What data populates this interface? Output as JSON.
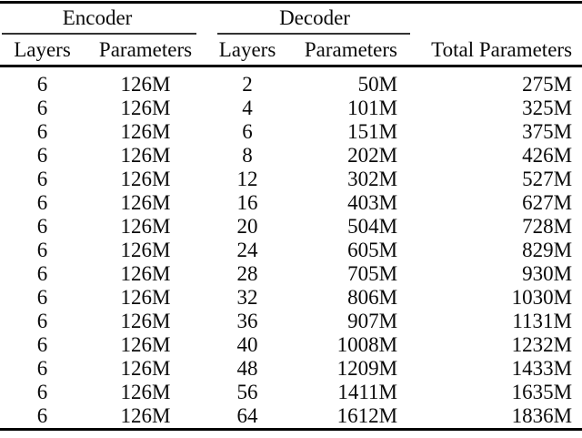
{
  "table": {
    "groups": {
      "encoder_label": "Encoder",
      "decoder_label": "Decoder"
    },
    "columns": [
      "Layers",
      "Parameters",
      "Layers",
      "Parameters",
      "Total Parameters"
    ],
    "rows": [
      [
        "6",
        "126M",
        "2",
        "50M",
        "275M"
      ],
      [
        "6",
        "126M",
        "4",
        "101M",
        "325M"
      ],
      [
        "6",
        "126M",
        "6",
        "151M",
        "375M"
      ],
      [
        "6",
        "126M",
        "8",
        "202M",
        "426M"
      ],
      [
        "6",
        "126M",
        "12",
        "302M",
        "527M"
      ],
      [
        "6",
        "126M",
        "16",
        "403M",
        "627M"
      ],
      [
        "6",
        "126M",
        "20",
        "504M",
        "728M"
      ],
      [
        "6",
        "126M",
        "24",
        "605M",
        "829M"
      ],
      [
        "6",
        "126M",
        "28",
        "705M",
        "930M"
      ],
      [
        "6",
        "126M",
        "32",
        "806M",
        "1030M"
      ],
      [
        "6",
        "126M",
        "36",
        "907M",
        "1131M"
      ],
      [
        "6",
        "126M",
        "40",
        "1008M",
        "1232M"
      ],
      [
        "6",
        "126M",
        "48",
        "1209M",
        "1433M"
      ],
      [
        "6",
        "126M",
        "56",
        "1411M",
        "1635M"
      ],
      [
        "6",
        "126M",
        "64",
        "1612M",
        "1836M"
      ]
    ],
    "cell_names": [
      "cell-encoder-layers",
      "cell-encoder-parameters",
      "cell-decoder-layers",
      "cell-decoder-parameters",
      "cell-total-parameters"
    ],
    "colors": {
      "text": "#0a0a0a",
      "rule": "#000000",
      "background": "#ffffff"
    }
  }
}
